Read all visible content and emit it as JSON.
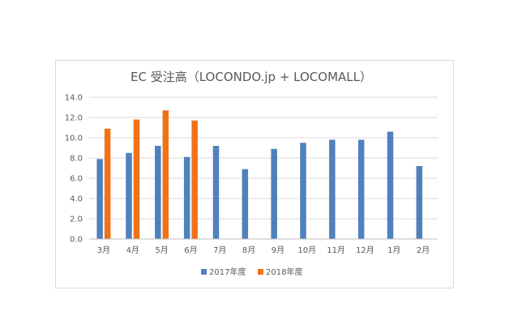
{
  "chart_data": {
    "type": "bar",
    "title": "EC 受注高（LOCONDO.jp + LOCOMALL）",
    "categories": [
      "3月",
      "4月",
      "5月",
      "6月",
      "7月",
      "8月",
      "9月",
      "10月",
      "11月",
      "12月",
      "1月",
      "2月"
    ],
    "series": [
      {
        "name": "2017年度",
        "color": "#4f81bd",
        "values": [
          7.9,
          8.5,
          9.2,
          8.1,
          9.2,
          6.9,
          8.9,
          9.5,
          9.8,
          9.8,
          10.6,
          7.2
        ]
      },
      {
        "name": "2018年度",
        "color": "#f07218",
        "values": [
          10.9,
          11.8,
          12.7,
          11.7,
          null,
          null,
          null,
          null,
          null,
          null,
          null,
          null
        ]
      }
    ],
    "yticks": [
      "0.0",
      "2.0",
      "4.0",
      "6.0",
      "8.0",
      "10.0",
      "12.0",
      "14.0"
    ],
    "ylim": [
      0,
      14
    ],
    "xlabel": "",
    "ylabel": "",
    "grid": true,
    "legend_position": "bottom"
  }
}
